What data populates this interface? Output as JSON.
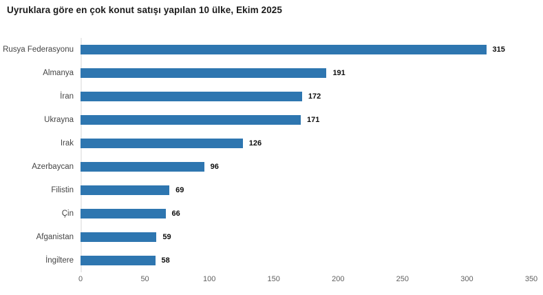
{
  "chart_data": {
    "type": "bar",
    "orientation": "horizontal",
    "title": "Uyruklara göre en çok konut satışı yapılan 10 ülke, Ekim 2025",
    "categories": [
      "Rusya Federasyonu",
      "Almanya",
      "İran",
      "Ukrayna",
      "Irak",
      "Azerbaycan",
      "Filistin",
      "Çin",
      "Afganistan",
      "İngiltere"
    ],
    "values": [
      315,
      191,
      172,
      171,
      126,
      96,
      69,
      66,
      59,
      58
    ],
    "xlabel": "",
    "ylabel": "",
    "xlim": [
      0,
      350
    ],
    "xticks": [
      0,
      50,
      100,
      150,
      200,
      250,
      300,
      350
    ],
    "grid": false,
    "legend": false,
    "bar_color": "#2E76B0",
    "value_label_color": "#0D0D0D",
    "category_label_color": "#444444",
    "tick_label_color": "#5F5F5F",
    "axis_line_color": "#EBEBEB",
    "title_color": "#1A1A1A",
    "background_color": "#FFFFFF"
  }
}
